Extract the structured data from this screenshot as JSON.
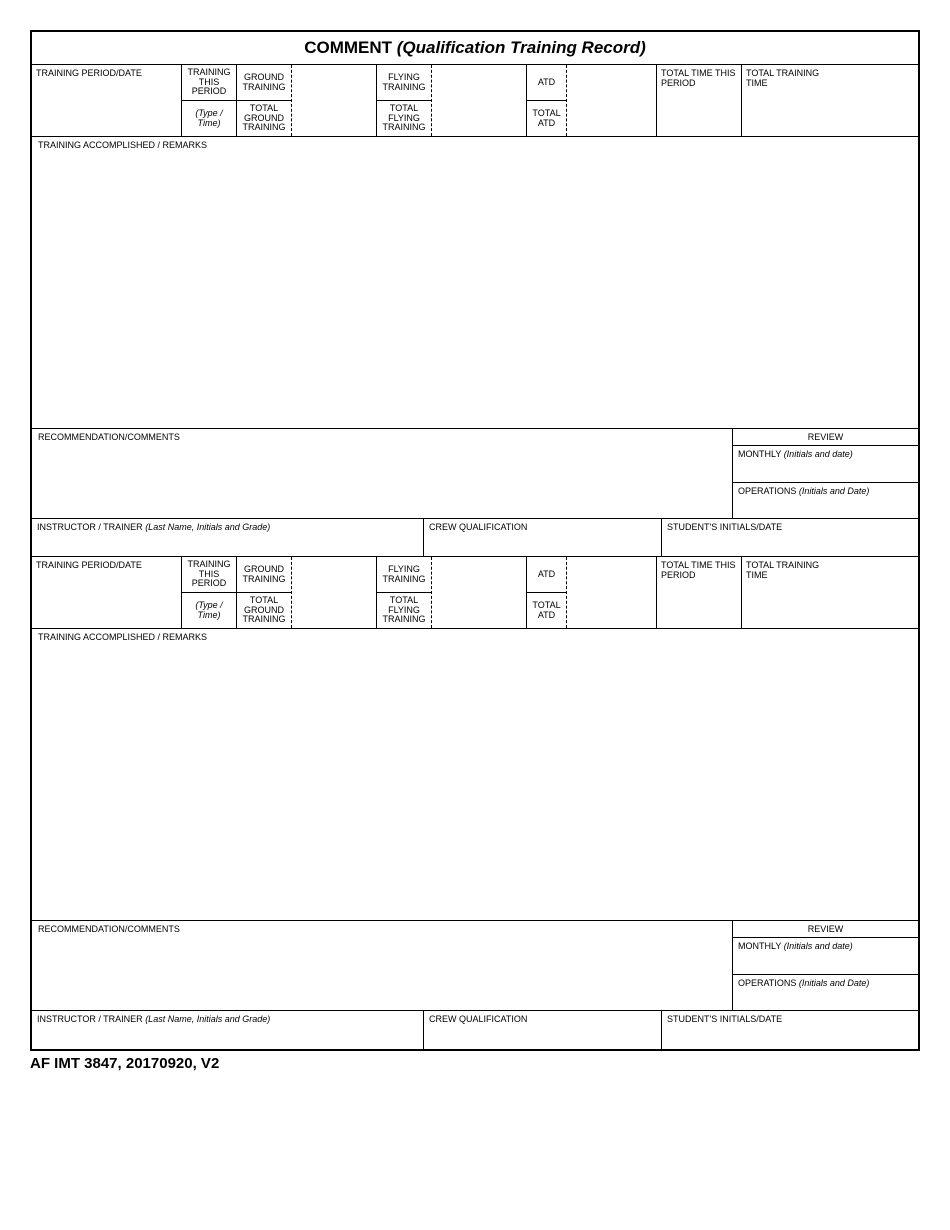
{
  "title": {
    "bold": "COMMENT ",
    "italic": "(Qualification Training Record)"
  },
  "hdr": {
    "training_period_date": "TRAINING PERIOD/DATE",
    "training_this_period": "TRAINING THIS PERIOD",
    "type_time": "(Type / Time)",
    "ground_training": "GROUND TRAINING",
    "total_ground_training": "TOTAL GROUND TRAINING",
    "flying_training": "FLYING TRAINING",
    "total_flying_training": "TOTAL FLYING TRAINING",
    "atd": "ATD",
    "total_atd": "TOTAL ATD",
    "total_time_this_period": "TOTAL TIME THIS PERIOD",
    "total_training_time": "TOTAL TRAINING TIME"
  },
  "labels": {
    "training_accomplished_remarks": "TRAINING ACCOMPLISHED / REMARKS",
    "recommendation_comments": "RECOMMENDATION/COMMENTS",
    "review": "REVIEW",
    "monthly": "MONTHLY ",
    "monthly_italic": "(Initials and date)",
    "operations": "OPERATIONS ",
    "operations_italic": "(Initials and Date)",
    "instructor_trainer": "INSTRUCTOR / TRAINER ",
    "instructor_trainer_italic": "(Last Name, Initials and Grade)",
    "crew_qualification": "CREW QUALIFICATION",
    "students_initials_date": "STUDENT'S INITIALS/DATE"
  },
  "footer": {
    "form_id": "AF IMT 3847, 20170920, V2"
  }
}
